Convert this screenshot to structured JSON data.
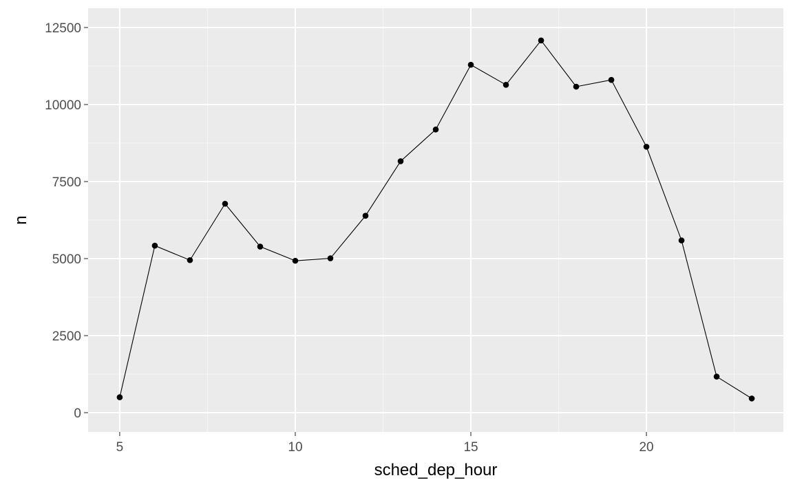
{
  "chart_data": {
    "type": "line",
    "title": "",
    "xlabel": "sched_dep_hour",
    "ylabel": "n",
    "xlim": [
      4.1,
      23.9
    ],
    "ylim": [
      0,
      12500
    ],
    "x_ticks": [
      5,
      10,
      15,
      20
    ],
    "y_ticks": [
      0,
      2500,
      5000,
      7500,
      10000,
      12500
    ],
    "x_tick_labels": [
      "5",
      "10",
      "15",
      "20"
    ],
    "y_tick_labels": [
      "0",
      "2500",
      "5000",
      "7500",
      "10000",
      "12500"
    ],
    "grid": true,
    "points_shown": true,
    "series": [
      {
        "x": [
          5,
          6,
          7,
          8,
          9,
          10,
          11,
          12,
          13,
          14,
          15,
          16,
          17,
          18,
          19,
          20,
          21,
          22,
          23
        ],
        "y": [
          500,
          5420,
          4950,
          6780,
          5390,
          4930,
          5010,
          6390,
          8160,
          9190,
          11290,
          10640,
          12080,
          10580,
          10800,
          8630,
          5590,
          1170,
          460
        ],
        "color": "#000000"
      }
    ],
    "colors": {
      "panel_background": "#ebebeb",
      "grid_major": "#ffffff",
      "grid_minor": "#f5f5f5",
      "line": "#000000",
      "tick_text": "#4d4d4d",
      "tick_mark": "#333333"
    }
  }
}
